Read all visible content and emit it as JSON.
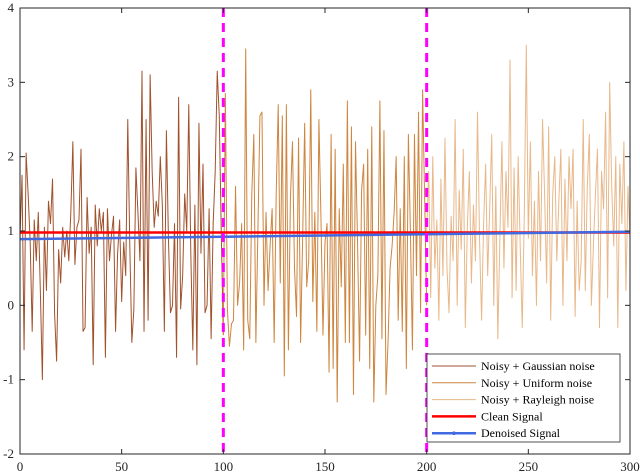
{
  "chart_data": {
    "type": "line",
    "title": "",
    "xlabel": "",
    "ylabel": "",
    "xlim": [
      0,
      300
    ],
    "ylim": [
      -2,
      4
    ],
    "xticks": [
      0,
      50,
      100,
      150,
      200,
      250,
      300
    ],
    "yticks": [
      -2,
      -1,
      0,
      1,
      2,
      3,
      4
    ],
    "grid": false,
    "legend": {
      "position": "bottom-right"
    },
    "vertical_lines": [
      {
        "x": 100,
        "color": "#ff00ff",
        "style": "dashed"
      },
      {
        "x": 200,
        "color": "#ff00ff",
        "style": "dashed"
      }
    ],
    "series": [
      {
        "name": "Noisy + Gaussian noise",
        "color": "#a0522d",
        "x_start": 0,
        "values": [
          0.9,
          1.75,
          -0.6,
          2.05,
          1.5,
          0.85,
          -0.35,
          1.15,
          0.6,
          1.25,
          0.2,
          -1.0,
          1.05,
          0.2,
          1.4,
          1.1,
          1.7,
          -0.1,
          -0.75,
          0.75,
          0.3,
          1.05,
          0.65,
          1.0,
          0.6,
          1.25,
          2.2,
          0.55,
          1.05,
          1.15,
          2.1,
          -0.35,
          -0.3,
          1.45,
          0.7,
          1.05,
          -0.8,
          1.35,
          0.8,
          1.3,
          1.0,
          1.25,
          -0.7,
          1.3,
          0.6,
          0.95,
          1.2,
          -0.35,
          0.7,
          1.15,
          0.05,
          0.85,
          0.4,
          2.5,
          0.8,
          -0.5,
          -0.05,
          1.85,
          1.25,
          0.6,
          3.15,
          -0.35,
          2.5,
          -0.2,
          3.1,
          1.8,
          1.05,
          1.4,
          1.2,
          2.0,
          1.35,
          -0.35,
          2.35,
          0.9,
          -0.1,
          0.0,
          1.1,
          -0.7,
          2.8,
          -0.05,
          0.4,
          1.5,
          1.0,
          2.7,
          0.7,
          -0.6,
          1.35,
          -0.8,
          2.45,
          0.7,
          1.9,
          -0.1,
          0.0,
          1.3,
          -0.45,
          1.1,
          1.8,
          3.15,
          2.55,
          0.95,
          -0.4
        ]
      },
      {
        "name": "Noisy + Uniform noise",
        "color": "#cd853f",
        "x_start": 100,
        "values": [
          -0.4,
          2.85,
          -0.05,
          -0.55,
          -0.25,
          -0.2,
          1.6,
          0.0,
          0.3,
          1.1,
          -0.6,
          3.45,
          -0.2,
          -0.45,
          1.5,
          2.3,
          -0.5,
          1.0,
          2.55,
          2.6,
          0.0,
          1.25,
          0.2,
          0.8,
          1.3,
          -0.5,
          1.5,
          2.7,
          0.3,
          2.55,
          -0.95,
          2.7,
          -0.6,
          1.45,
          2.2,
          0.5,
          -0.15,
          2.25,
          -0.5,
          0.9,
          2.45,
          0.25,
          0.6,
          2.9,
          0.05,
          1.25,
          -0.35,
          2.5,
          1.2,
          -0.4,
          0.85,
          1.1,
          -0.9,
          2.3,
          -0.85,
          2.1,
          -1.3,
          1.3,
          0.25,
          1.9,
          -0.5,
          2.75,
          -0.5,
          2.4,
          -1.2,
          2.2,
          0.85,
          -0.75,
          1.55,
          1.9,
          -0.4,
          2.1,
          -0.85,
          2.4,
          -1.3,
          0.0,
          0.4,
          2.75,
          -0.45,
          2.35,
          -1.2,
          -0.5,
          0.5,
          0.8,
          1.25,
          2.0,
          -0.2,
          1.3,
          -0.35,
          2.0,
          -0.85,
          2.3,
          1.0,
          -0.6,
          2.3,
          0.4,
          2.6,
          -0.1,
          2.9,
          1.45,
          0.0
        ]
      },
      {
        "name": "Noisy + Rayleigh noise",
        "color": "#e8b88a",
        "x_start": 200,
        "values": [
          1.0,
          1.8,
          0.1,
          2.0,
          0.5,
          1.15,
          -0.2,
          1.7,
          0.4,
          2.25,
          0.5,
          -0.1,
          1.2,
          0.6,
          2.5,
          0.0,
          1.55,
          0.75,
          2.1,
          -0.3,
          1.05,
          1.8,
          0.3,
          1.35,
          0.6,
          2.6,
          0.9,
          -0.2,
          1.1,
          1.9,
          0.4,
          1.3,
          2.3,
          0.0,
          1.6,
          -0.45,
          0.9,
          2.2,
          0.5,
          1.8,
          1.05,
          3.3,
          0.1,
          1.85,
          0.2,
          2.0,
          0.8,
          -0.3,
          1.2,
          3.5,
          0.9,
          2.2,
          0.4,
          1.4,
          0.0,
          1.8,
          0.6,
          2.5,
          1.5,
          0.3,
          2.4,
          -0.2,
          1.5,
          2.0,
          0.6,
          1.4,
          2.1,
          0.0,
          1.7,
          0.6,
          2.0,
          1.3,
          2.1,
          -0.15,
          1.4,
          0.2,
          0.6,
          2.5,
          0.2,
          1.6,
          2.3,
          0.0,
          0.8,
          1.5,
          2.1,
          -0.3,
          1.8,
          1.3,
          2.6,
          0.1,
          3.0,
          1.6,
          0.8,
          2.0,
          -0.3,
          1.9,
          1.1,
          2.2,
          0.2,
          1.6,
          0.9
        ]
      },
      {
        "name": "Clean Signal",
        "color": "#ff0000",
        "x": [
          0,
          300
        ],
        "values": [
          0.98,
          0.98
        ]
      },
      {
        "name": "Denoised Signal",
        "color": "#4169e1",
        "x": [
          0,
          300
        ],
        "values": [
          0.89,
          0.99
        ]
      }
    ]
  }
}
